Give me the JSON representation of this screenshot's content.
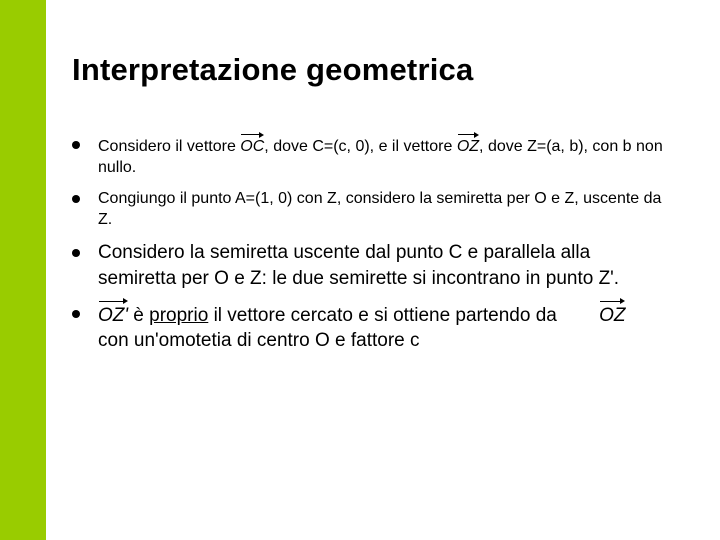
{
  "accent_color": "#99cc00",
  "background_color": "#ffffff",
  "text_color": "#000000",
  "title": "Interpretazione geometrica",
  "bullets": [
    {
      "size": "sm",
      "pre": "Considero il vettore ",
      "vec1": "OC",
      "mid": ", dove C=(c, 0), e il vettore ",
      "vec2": "OZ",
      "post": ", dove Z=(a, b), con b non nullo."
    },
    {
      "size": "sm",
      "text": "Congiungo il punto A=(1, 0) con Z, considero la semiretta per O e Z, uscente da Z."
    },
    {
      "size": "lg",
      "text": "Considero la semiretta uscente dal punto C e parallela alla semiretta per O e Z: le due semirette si incontrano in punto Z'."
    },
    {
      "size": "lg",
      "vec3": "OZ'",
      "pre2": " è ",
      "underlined": "proprio",
      "mid2": " il vettore cercato e si ottiene partendo da ",
      "vec4": "OZ",
      "post2": " con un'omotetia  di centro O e fattore c"
    }
  ]
}
